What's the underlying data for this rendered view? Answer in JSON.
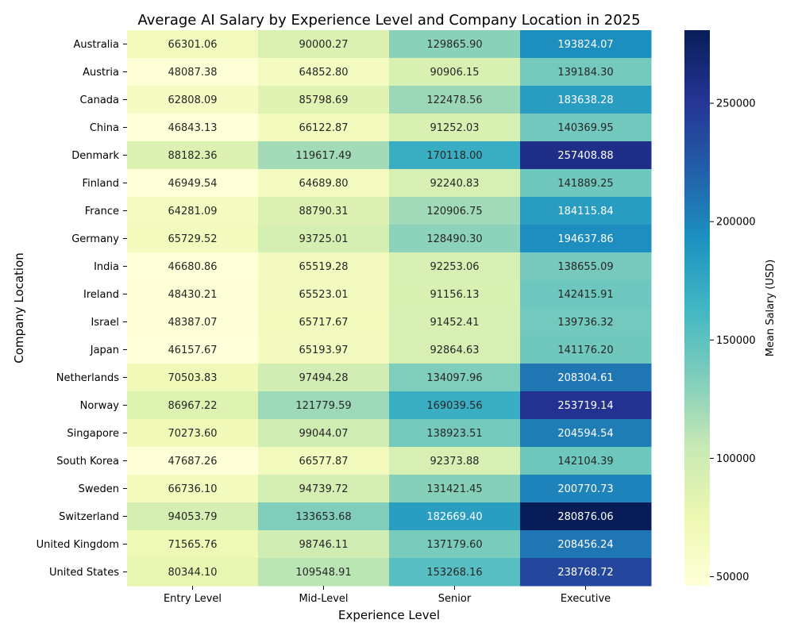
{
  "chart_data": {
    "type": "heatmap",
    "title": "Average AI Salary by Experience Level and Company Location in 2025",
    "xlabel": "Experience Level",
    "ylabel": "Company Location",
    "x_categories": [
      "Entry Level",
      "Mid-Level",
      "Senior",
      "Executive"
    ],
    "y_categories": [
      "Australia",
      "Austria",
      "Canada",
      "China",
      "Denmark",
      "Finland",
      "France",
      "Germany",
      "India",
      "Ireland",
      "Israel",
      "Japan",
      "Netherlands",
      "Norway",
      "Singapore",
      "South Korea",
      "Sweden",
      "Switzerland",
      "United Kingdom",
      "United States"
    ],
    "values": [
      [
        66301.06,
        90000.27,
        129865.9,
        193824.07
      ],
      [
        48087.38,
        64852.8,
        90906.15,
        139184.3
      ],
      [
        62808.09,
        85798.69,
        122478.56,
        183638.28
      ],
      [
        46843.13,
        66122.87,
        91252.03,
        140369.95
      ],
      [
        88182.36,
        119617.49,
        170118.0,
        257408.88
      ],
      [
        46949.54,
        64689.8,
        92240.83,
        141889.25
      ],
      [
        64281.09,
        88790.31,
        120906.75,
        184115.84
      ],
      [
        65729.52,
        93725.01,
        128490.3,
        194637.86
      ],
      [
        46680.86,
        65519.28,
        92253.06,
        138655.09
      ],
      [
        48430.21,
        65523.01,
        91156.13,
        142415.91
      ],
      [
        48387.07,
        65717.67,
        91452.41,
        139736.32
      ],
      [
        46157.67,
        65193.97,
        92864.63,
        141176.2
      ],
      [
        70503.83,
        97494.28,
        134097.96,
        208304.61
      ],
      [
        86967.22,
        121779.59,
        169039.56,
        253719.14
      ],
      [
        70273.6,
        99044.07,
        138923.51,
        204594.54
      ],
      [
        47687.26,
        66577.87,
        92373.88,
        142104.39
      ],
      [
        66736.1,
        94739.72,
        131421.45,
        200770.73
      ],
      [
        94053.79,
        133653.68,
        182669.4,
        280876.06
      ],
      [
        71565.76,
        98746.11,
        137179.6,
        208456.24
      ],
      [
        80344.1,
        109548.91,
        153268.16,
        238768.72
      ]
    ],
    "colormap": "YlGnBu",
    "colorbar": {
      "label": "Mean Salary (USD)",
      "ticks": [
        50000,
        100000,
        150000,
        200000,
        250000
      ],
      "range": [
        46157.67,
        280876.06
      ]
    },
    "value_format": "2 decimals",
    "grid": false,
    "legend": "colorbar-right"
  }
}
